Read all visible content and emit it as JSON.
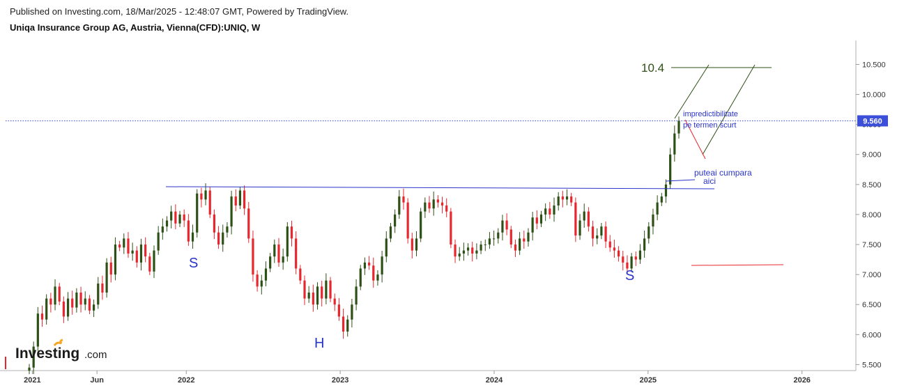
{
  "header": {
    "published": "Published on Investing.com, 18/Mar/2025 - 12:48:07 GMT, Powered by TradingView.",
    "symbol": "Uniqa Insurance Group AG, Austria, Vienna(CFD):UNIQ, W"
  },
  "logo": {
    "brand": "Investing",
    "suffix": ".com"
  },
  "chart_data": {
    "type": "candlestick",
    "y_axis": {
      "ticks": [
        "5.500",
        "6.000",
        "6.500",
        "7.000",
        "7.500",
        "8.000",
        "8.500",
        "9.000",
        "9.500",
        "10.000",
        "10.500"
      ],
      "ylim": [
        5.4,
        10.9
      ],
      "side": "right"
    },
    "x_axis": {
      "ticks": [
        {
          "label": "2021",
          "date": "2021.0"
        },
        {
          "label": "Jun",
          "date": "2021.42"
        },
        {
          "label": "2022",
          "date": "2022.0"
        },
        {
          "label": "2023",
          "date": "2023.0"
        },
        {
          "label": "2024",
          "date": "2024.0"
        },
        {
          "label": "2025",
          "date": "2025.0"
        },
        {
          "label": "2026",
          "date": "2026.0"
        }
      ],
      "xlim": [
        "2020.79",
        "2026.35"
      ]
    },
    "last_price": {
      "label": "9.560",
      "value": 9.56
    },
    "series": {
      "name": "UNIQ",
      "up_color": "#2d5016",
      "down_color": "#e8262d",
      "close": [
        5.45,
        5.8,
        6.35,
        6.25,
        6.6,
        6.5,
        6.8,
        6.55,
        6.3,
        6.6,
        6.45,
        6.7,
        6.5,
        6.6,
        6.4,
        6.5,
        6.85,
        6.7,
        7.2,
        7.0,
        7.5,
        7.45,
        7.6,
        7.35,
        7.4,
        7.2,
        7.5,
        7.3,
        7.05,
        7.4,
        7.7,
        7.8,
        7.9,
        8.05,
        7.85,
        8.0,
        7.9,
        7.55,
        7.7,
        8.35,
        8.25,
        8.4,
        8.0,
        7.7,
        7.5,
        7.7,
        7.8,
        8.3,
        8.15,
        8.4,
        8.1,
        7.6,
        7.0,
        6.8,
        6.9,
        7.1,
        7.3,
        7.5,
        7.2,
        7.3,
        7.8,
        7.6,
        7.1,
        6.9,
        6.6,
        6.7,
        6.5,
        6.8,
        6.6,
        6.9,
        6.6,
        6.5,
        6.3,
        6.05,
        6.25,
        6.5,
        6.8,
        7.1,
        7.2,
        7.15,
        6.9,
        7.0,
        7.3,
        7.6,
        7.8,
        8.0,
        8.3,
        8.2,
        7.6,
        7.4,
        7.6,
        8.05,
        8.2,
        8.1,
        8.25,
        8.2,
        8.15,
        8.05,
        7.5,
        7.3,
        7.35,
        7.4,
        7.45,
        7.35,
        7.4,
        7.5,
        7.5,
        7.6,
        7.6,
        7.7,
        7.9,
        7.75,
        7.5,
        7.4,
        7.6,
        7.55,
        7.7,
        7.95,
        7.85,
        8.0,
        8.1,
        8.0,
        8.15,
        8.3,
        8.25,
        8.3,
        8.2,
        7.65,
        7.9,
        8.05,
        7.8,
        7.6,
        7.65,
        7.8,
        7.55,
        7.45,
        7.4,
        7.3,
        7.2,
        7.1,
        7.3,
        7.25,
        7.4,
        7.6,
        7.8,
        8.0,
        8.2,
        8.3,
        8.5,
        9.0,
        9.35,
        9.56
      ]
    }
  },
  "annotations": {
    "target_label": "10.4",
    "note_top": "impredictibilitate",
    "note_bottom": "pe termen scurt",
    "buy_line1": "puteai cumpara",
    "buy_line2": "aici",
    "left_shoulder": "S",
    "head": "H",
    "right_shoulder": "S"
  }
}
